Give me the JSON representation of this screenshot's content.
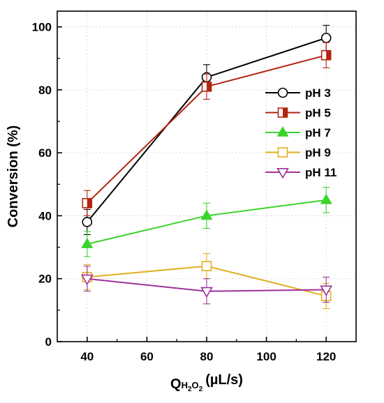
{
  "chart_data": {
    "type": "line",
    "xlabel": "Q",
    "xlabel_sub": "H2O2",
    "xlabel_unit": "(µL/s)",
    "ylabel": "Conversion (%)",
    "xlim": [
      30,
      130
    ],
    "ylim": [
      0,
      105
    ],
    "xticks": [
      40,
      60,
      80,
      100,
      120
    ],
    "yticks": [
      0,
      20,
      40,
      60,
      80,
      100
    ],
    "grid": true,
    "legend_position": "right",
    "x": [
      40,
      80,
      120
    ],
    "series": [
      {
        "name": "pH 3",
        "values": [
          38,
          84,
          96.5
        ],
        "errors": [
          4,
          4,
          4
        ],
        "color": "#000000",
        "marker": "circle-open"
      },
      {
        "name": "pH 5",
        "values": [
          44,
          81,
          91
        ],
        "errors": [
          4,
          4,
          4
        ],
        "color": "#b52410",
        "marker": "square-half"
      },
      {
        "name": "pH 7",
        "values": [
          31,
          40,
          45
        ],
        "errors": [
          4,
          4,
          4
        ],
        "color": "#3ad42a",
        "marker": "triangle-up"
      },
      {
        "name": "pH 9",
        "values": [
          20.5,
          24,
          14.5
        ],
        "errors": [
          4,
          4,
          4
        ],
        "color": "#e0b020",
        "marker": "square-open"
      },
      {
        "name": "pH 11",
        "values": [
          20,
          16,
          16.5
        ],
        "errors": [
          4,
          4,
          4
        ],
        "color": "#a0309a",
        "marker": "triangle-down-open"
      }
    ]
  }
}
